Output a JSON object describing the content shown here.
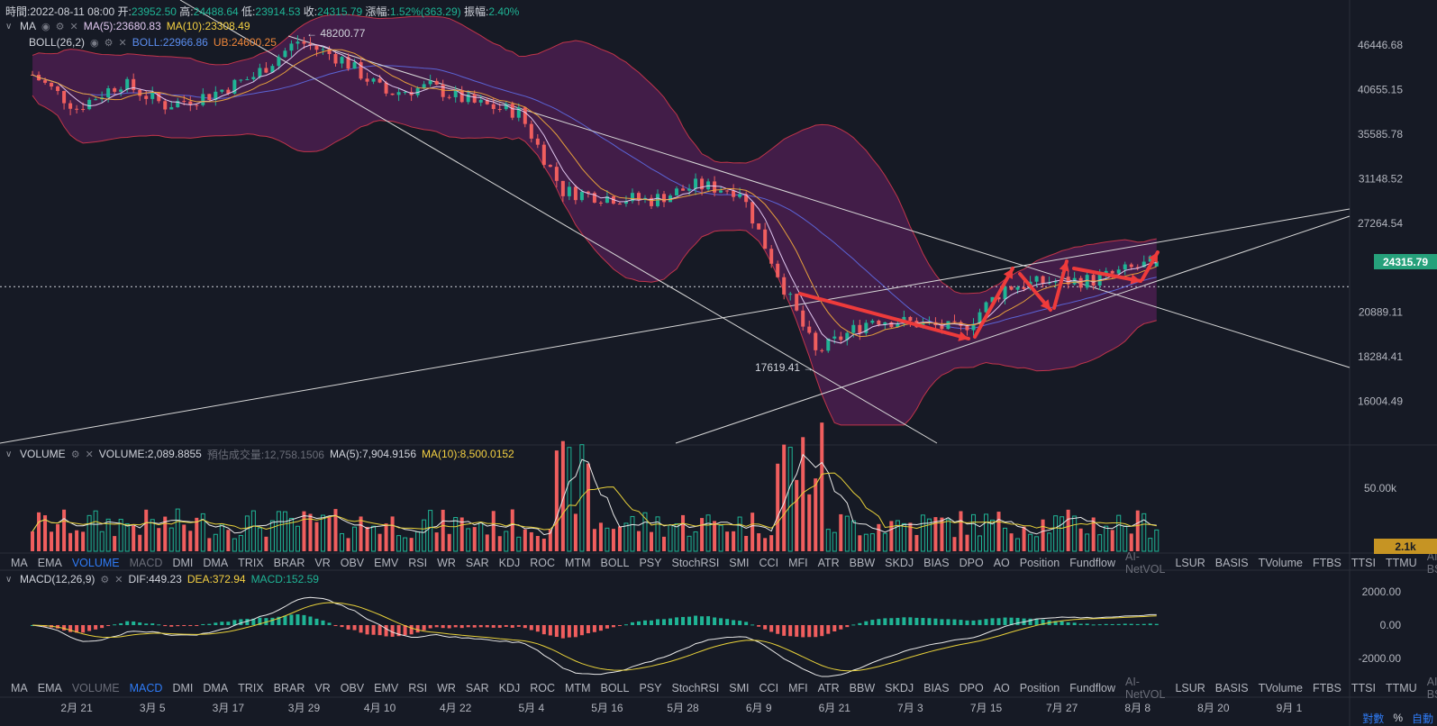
{
  "header": {
    "time_label": "時間:",
    "time": "2022-08-11 08:00",
    "open_label": "开:",
    "open": "23952.50",
    "high_label": "高:",
    "high": "24488.64",
    "low_label": "低:",
    "low": "23914.53",
    "close_label": "收:",
    "close": "24315.79",
    "change_label": "漲幅:",
    "change": "1.52%(363.29)",
    "amp_label": "振幅:",
    "amp": "2.40%"
  },
  "ma_legend": {
    "name": "MA",
    "ma5": "MA(5):23680.83",
    "ma10": "MA(10):23308.49"
  },
  "boll_legend": {
    "name": "BOLL(26,2)",
    "boll": "BOLL:22966.86",
    "ub": "UB:24600.25"
  },
  "volume_legend": {
    "name": "VOLUME",
    "volume": "VOLUME:2,089.8855",
    "est": "預估成交量:12,758.1506",
    "ma5": "MA(5):7,904.9156",
    "ma10": "MA(10):8,500.0152"
  },
  "macd_legend": {
    "name": "MACD(12,26,9)",
    "dif": "DIF:449.23",
    "dea": "DEA:372.94",
    "macd": "MACD:152.59"
  },
  "markers": {
    "high": "← 48200.77",
    "low": "17619.41 →"
  },
  "price_tag": "24315.79",
  "volume_tag": "2.1k",
  "indicator_tabs": [
    "MA",
    "EMA",
    "VOLUME",
    "MACD",
    "DMI",
    "DMA",
    "TRIX",
    "BRAR",
    "VR",
    "OBV",
    "EMV",
    "RSI",
    "WR",
    "SAR",
    "KDJ",
    "ROC",
    "MTM",
    "BOLL",
    "PSY",
    "StochRSI",
    "SMI",
    "CCI",
    "MFI",
    "ATR",
    "BBW",
    "SKDJ",
    "BIAS",
    "DPO",
    "AO",
    "Position",
    "Fundflow",
    "AI-NetVOL",
    "LSUR",
    "BASIS",
    "TVolume",
    "FTBS",
    "TTSI",
    "TTMU",
    "AI-BSI"
  ],
  "bottom_controls": [
    "對數",
    "%",
    "自動"
  ],
  "colors": {
    "up": "#1fb495",
    "down": "#f05e5e",
    "band": "#5a1f5a",
    "ma5": "#e0c7ef",
    "ma10": "#e6a03c",
    "boll_mid": "#5b64d6",
    "dif": "#e8e8e8",
    "dea": "#e8d13a",
    "tag": "#26a17b",
    "vol_tag": "#c69423"
  },
  "chart_data": {
    "type": "candlestick",
    "title": "",
    "interval": "weekly-ish daily candles",
    "y_ticks": [
      "46446.68",
      "40655.15",
      "35585.78",
      "31148.52",
      "27264.54",
      "20889.11",
      "18284.41",
      "16004.49"
    ],
    "volume_ticks": [
      "50.00k"
    ],
    "macd_ticks": [
      "2000.00",
      "0.00",
      "-2000.00"
    ],
    "x_ticks": [
      "2月 21",
      "3月 5",
      "3月 17",
      "3月 29",
      "4月 10",
      "4月 22",
      "5月 4",
      "5月 16",
      "5月 28",
      "6月 9",
      "6月 21",
      "7月 3",
      "7月 15",
      "7月 27",
      "8月 8",
      "8月 20",
      "9月 1"
    ],
    "y_scale": "log",
    "y_range": [
      14200,
      52000
    ],
    "annotated_high": 48200.77,
    "annotated_low": 17619.41,
    "last_close": 24315.79,
    "close_path": [
      {
        "d": "2022-02-14",
        "v": 42500
      },
      {
        "d": "2022-02-21",
        "v": 38500
      },
      {
        "d": "2022-02-28",
        "v": 41500
      },
      {
        "d": "2022-03-07",
        "v": 38800
      },
      {
        "d": "2022-03-14",
        "v": 40000
      },
      {
        "d": "2022-03-21",
        "v": 42300
      },
      {
        "d": "2022-03-28",
        "v": 47000
      },
      {
        "d": "2022-04-04",
        "v": 44500
      },
      {
        "d": "2022-04-11",
        "v": 40200
      },
      {
        "d": "2022-04-18",
        "v": 41000
      },
      {
        "d": "2022-04-25",
        "v": 39000
      },
      {
        "d": "2022-05-02",
        "v": 38000
      },
      {
        "d": "2022-05-09",
        "v": 30000
      },
      {
        "d": "2022-05-16",
        "v": 29500
      },
      {
        "d": "2022-05-23",
        "v": 29200
      },
      {
        "d": "2022-05-30",
        "v": 30500
      },
      {
        "d": "2022-06-06",
        "v": 30100
      },
      {
        "d": "2022-06-13",
        "v": 22500
      },
      {
        "d": "2022-06-18",
        "v": 18500
      },
      {
        "d": "2022-06-27",
        "v": 20500
      },
      {
        "d": "2022-07-04",
        "v": 20200
      },
      {
        "d": "2022-07-11",
        "v": 19800
      },
      {
        "d": "2022-07-18",
        "v": 22500
      },
      {
        "d": "2022-07-25",
        "v": 22900
      },
      {
        "d": "2022-08-01",
        "v": 23000
      },
      {
        "d": "2022-08-11",
        "v": 24315.79
      }
    ]
  }
}
